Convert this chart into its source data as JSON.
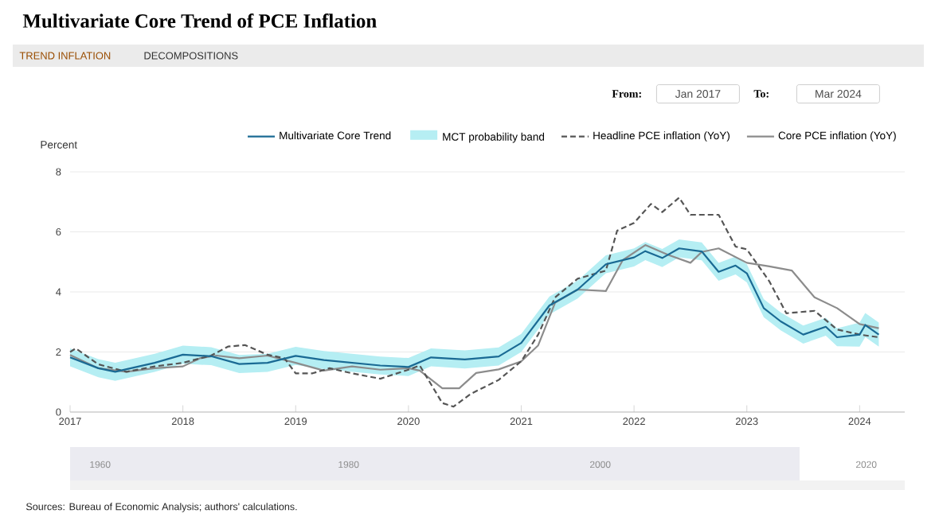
{
  "chart_data": {
    "type": "line",
    "title": "Multivariate Core Trend of PCE Inflation",
    "ylabel": "Percent",
    "xlim": [
      2017,
      2024.4
    ],
    "xticks": [
      2017,
      2018,
      2019,
      2020,
      2021,
      2022,
      2023,
      2024
    ],
    "ylim": [
      0,
      8
    ],
    "yticks": [
      0,
      2,
      4,
      6,
      8
    ],
    "grid": "y",
    "legend": "top",
    "marker": "none",
    "annotations": [
      "TREND INFLATION",
      "DECOMPOSITIONS",
      "From:",
      "Jan 2017",
      "To:",
      "Mar 2024",
      "1960",
      "1980",
      "2000",
      "2020",
      "Sources: Bureau of Economic Analysis; authors' calculations.",
      "MCT probability band"
    ],
    "series": [
      {
        "name": "Multivariate Core Trend",
        "color": "#1a6a94",
        "line_style": "solid",
        "x": [
          2017,
          2017.25,
          2017.4,
          2017.75,
          2018,
          2018.25,
          2018.5,
          2018.75,
          2019,
          2019.25,
          2019.5,
          2019.75,
          2020,
          2020.2,
          2020.5,
          2020.8,
          2021,
          2021.25,
          2021.5,
          2021.75,
          2022,
          2022.1,
          2022.25,
          2022.4,
          2022.6,
          2022.75,
          2022.9,
          2023,
          2023.15,
          2023.3,
          2023.5,
          2023.7,
          2023.8,
          2024,
          2024.05,
          2024.17
        ],
        "values": [
          1.82,
          1.46,
          1.34,
          1.64,
          1.91,
          1.86,
          1.6,
          1.64,
          1.87,
          1.73,
          1.64,
          1.55,
          1.5,
          1.82,
          1.75,
          1.85,
          2.3,
          3.55,
          4.08,
          4.92,
          5.15,
          5.36,
          5.13,
          5.45,
          5.35,
          4.67,
          4.88,
          4.62,
          3.46,
          3.02,
          2.58,
          2.84,
          2.49,
          2.58,
          2.9,
          2.58
        ],
        "lower": [
          1.52,
          1.16,
          1.04,
          1.34,
          1.61,
          1.56,
          1.3,
          1.34,
          1.57,
          1.43,
          1.34,
          1.25,
          1.2,
          1.52,
          1.45,
          1.55,
          2.0,
          3.25,
          3.78,
          4.62,
          4.85,
          5.06,
          4.83,
          5.15,
          5.05,
          4.37,
          4.58,
          4.32,
          3.16,
          2.72,
          2.28,
          2.54,
          2.19,
          2.18,
          2.5,
          2.18
        ],
        "upper": [
          2.12,
          1.76,
          1.64,
          1.94,
          2.21,
          2.16,
          1.9,
          1.94,
          2.17,
          2.03,
          1.94,
          1.85,
          1.8,
          2.12,
          2.05,
          2.15,
          2.6,
          3.85,
          4.38,
          5.22,
          5.45,
          5.66,
          5.43,
          5.75,
          5.65,
          4.97,
          5.18,
          4.92,
          3.76,
          3.32,
          2.88,
          3.14,
          2.79,
          2.98,
          3.3,
          2.98
        ]
      },
      {
        "name": "Headline PCE inflation (YoY)",
        "color": "#555555",
        "line_style": "dashed",
        "x": [
          2017,
          2017.05,
          2017.25,
          2017.5,
          2017.75,
          2018,
          2018.25,
          2018.4,
          2018.55,
          2018.75,
          2018.9,
          2019,
          2019.15,
          2019.3,
          2019.5,
          2019.75,
          2020,
          2020.1,
          2020.3,
          2020.4,
          2020.55,
          2020.8,
          2021,
          2021.15,
          2021.3,
          2021.5,
          2021.75,
          2021.85,
          2022,
          2022.15,
          2022.25,
          2022.4,
          2022.5,
          2022.75,
          2022.9,
          2023,
          2023.2,
          2023.35,
          2023.6,
          2023.8,
          2024,
          2024.17
        ],
        "values": [
          2.0,
          2.12,
          1.59,
          1.34,
          1.52,
          1.64,
          1.88,
          2.18,
          2.23,
          1.91,
          1.79,
          1.29,
          1.29,
          1.46,
          1.29,
          1.11,
          1.41,
          1.55,
          0.3,
          0.18,
          0.6,
          1.07,
          1.69,
          2.58,
          3.82,
          4.44,
          4.71,
          6.04,
          6.3,
          6.93,
          6.66,
          7.14,
          6.57,
          6.57,
          5.51,
          5.42,
          4.35,
          3.29,
          3.37,
          2.75,
          2.58,
          2.49
        ]
      },
      {
        "name": "Core PCE inflation (YoY)",
        "color": "#8c8c8c",
        "line_style": "solid",
        "x": [
          2017,
          2017.25,
          2017.5,
          2017.75,
          2018,
          2018.15,
          2018.3,
          2018.5,
          2018.75,
          2019,
          2019.25,
          2019.5,
          2019.75,
          2020,
          2020.1,
          2020.3,
          2020.45,
          2020.6,
          2020.8,
          2021,
          2021.15,
          2021.3,
          2021.5,
          2021.75,
          2021.9,
          2022.1,
          2022.3,
          2022.5,
          2022.6,
          2022.75,
          2023,
          2023.2,
          2023.4,
          2023.6,
          2023.8,
          2024,
          2024.17
        ],
        "values": [
          1.9,
          1.46,
          1.34,
          1.46,
          1.52,
          1.79,
          1.88,
          1.79,
          1.88,
          1.64,
          1.38,
          1.52,
          1.41,
          1.46,
          1.38,
          0.79,
          0.79,
          1.3,
          1.42,
          1.69,
          2.22,
          3.64,
          4.08,
          4.03,
          5.06,
          5.56,
          5.24,
          4.97,
          5.33,
          5.45,
          4.97,
          4.85,
          4.71,
          3.82,
          3.46,
          2.93,
          2.79
        ]
      }
    ]
  }
}
